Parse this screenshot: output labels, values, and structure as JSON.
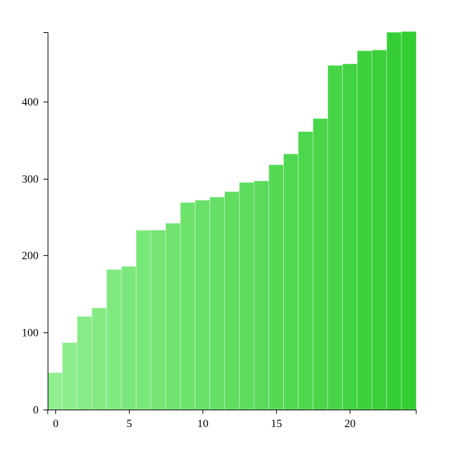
{
  "chart_data": {
    "type": "bar",
    "title": "",
    "xlabel": "",
    "ylabel": "",
    "x": [
      0,
      1,
      2,
      3,
      4,
      5,
      6,
      7,
      8,
      9,
      10,
      11,
      12,
      13,
      14,
      15,
      16,
      17,
      18,
      19,
      20,
      21,
      22,
      23,
      24
    ],
    "values": [
      48,
      87,
      121,
      132,
      182,
      186,
      233,
      233,
      242,
      269,
      272,
      276,
      283,
      295,
      297,
      318,
      332,
      361,
      378,
      447,
      449,
      466,
      467,
      490,
      491
    ],
    "xlim": [
      -0.5,
      24.5
    ],
    "ylim": [
      0,
      490
    ],
    "xticks": [
      0,
      5,
      10,
      15,
      20
    ],
    "xtick_labels": [
      "0",
      "5",
      "10",
      "15",
      "20"
    ],
    "yticks": [
      0,
      100,
      200,
      300,
      400
    ],
    "ytick_labels": [
      "0",
      "100",
      "200",
      "300",
      "400"
    ],
    "grid": false,
    "colors": {
      "start": "#90ee90",
      "end": "#32cd32"
    }
  }
}
